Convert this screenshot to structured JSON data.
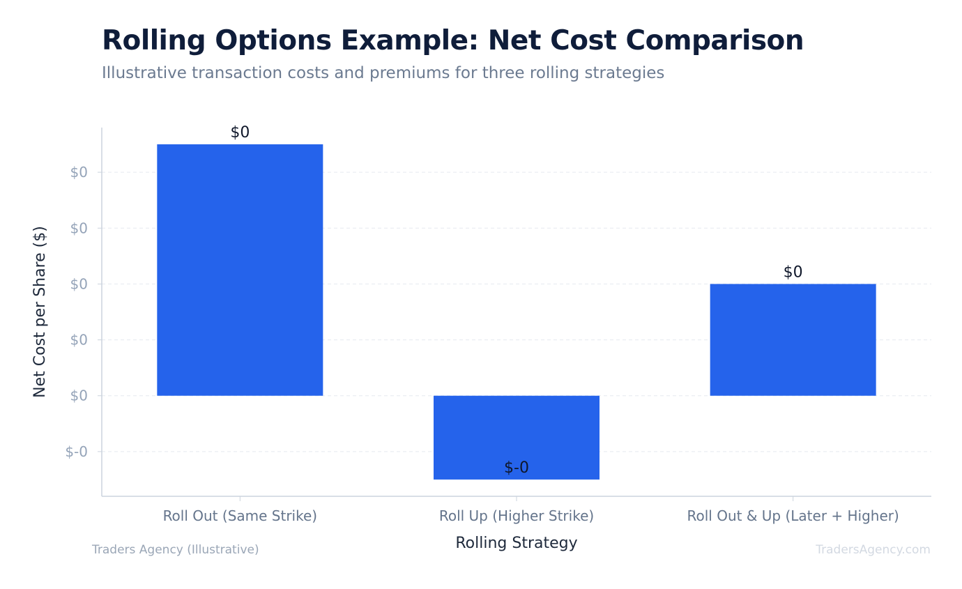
{
  "header": {
    "title": "Rolling Options Example: Net Cost Comparison",
    "subtitle": "Illustrative transaction costs and premiums for three rolling strategies"
  },
  "footer": {
    "source": "Traders Agency (Illustrative)",
    "watermark": "TradersAgency.com"
  },
  "colors": {
    "bar": "#2563eb",
    "grid": "#e5e9ef",
    "axis": "#cbd3dd",
    "tick_label": "#94a3b8",
    "category_label": "#64748b",
    "axis_title": "#1e293b",
    "data_label": "#0f172a"
  },
  "chart_data": {
    "type": "bar",
    "xlabel": "Rolling Strategy",
    "ylabel": "Net Cost per Share ($)",
    "categories": [
      "Roll Out (Same Strike)",
      "Roll Up (Higher Strike)",
      "Roll Out & Up (Later + Higher)"
    ],
    "values": [
      0.45,
      -0.15,
      0.2
    ],
    "data_labels": [
      "$0",
      "$-0",
      "$0"
    ],
    "yticks": [
      -0.1,
      0.0,
      0.1,
      0.2,
      0.3,
      0.4
    ],
    "ytick_labels": [
      "$-0",
      "$0",
      "$0",
      "$0",
      "$0",
      "$0"
    ],
    "ylim": [
      -0.18,
      0.48
    ],
    "grid": true,
    "legend": "none"
  }
}
